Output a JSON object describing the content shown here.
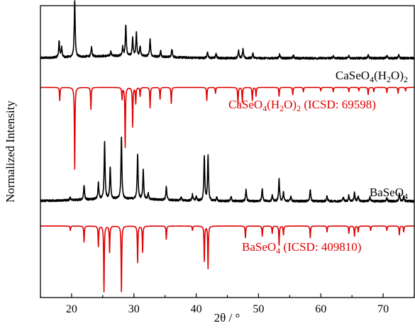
{
  "chart_data": {
    "type": "line",
    "xlabel": "2θ / °",
    "ylabel": "Normalized Intensity",
    "xlim": [
      15,
      75
    ],
    "xticks": [
      20,
      30,
      40,
      50,
      60,
      70
    ],
    "y_axis_tick_labels": false,
    "grid": false,
    "colors": {
      "measured": "#000000",
      "reference": "#e00000"
    },
    "series": [
      {
        "name": "CaSeO4(H2O)2",
        "label_parts": [
          {
            "t": "CaSeO",
            "sub": false
          },
          {
            "t": "4",
            "sub": true
          },
          {
            "t": "(H",
            "sub": false
          },
          {
            "t": "2",
            "sub": true
          },
          {
            "t": "O)",
            "sub": false
          },
          {
            "t": "2",
            "sub": true
          }
        ],
        "kind": "measured",
        "color": "#000000",
        "offset": 0.82,
        "peaks": [
          [
            18.0,
            0.055
          ],
          [
            18.4,
            0.035
          ],
          [
            20.5,
            0.195
          ],
          [
            23.2,
            0.032
          ],
          [
            26.3,
            0.016
          ],
          [
            28.2,
            0.03
          ],
          [
            28.7,
            0.105
          ],
          [
            29.8,
            0.06
          ],
          [
            30.4,
            0.078
          ],
          [
            31.0,
            0.034
          ],
          [
            32.6,
            0.06
          ],
          [
            34.3,
            0.02
          ],
          [
            36.1,
            0.028
          ],
          [
            41.8,
            0.021
          ],
          [
            43.2,
            0.015
          ],
          [
            46.8,
            0.028
          ],
          [
            47.5,
            0.03
          ],
          [
            49.1,
            0.016
          ],
          [
            53.4,
            0.015
          ],
          [
            55.6,
            0.01
          ],
          [
            62.0,
            0.008
          ],
          [
            64.5,
            0.008
          ],
          [
            67.6,
            0.01
          ],
          [
            70.6,
            0.009
          ],
          [
            72.5,
            0.01
          ]
        ]
      },
      {
        "name": "CaSeO4(H2O)2 (ICSD: 69598)",
        "label_parts": [
          {
            "t": "CaSeO",
            "sub": false
          },
          {
            "t": "4",
            "sub": true
          },
          {
            "t": "(H",
            "sub": false
          },
          {
            "t": "2",
            "sub": true
          },
          {
            "t": "O)",
            "sub": false
          },
          {
            "t": "2",
            "sub": true
          },
          {
            "t": " (ICSD: 69598)",
            "sub": false
          }
        ],
        "kind": "reference",
        "color": "#e00000",
        "offset": 0.72,
        "peaks": [
          [
            18.1,
            0.045
          ],
          [
            20.5,
            0.28
          ],
          [
            23.1,
            0.075
          ],
          [
            28.1,
            0.04
          ],
          [
            28.6,
            0.205
          ],
          [
            29.8,
            0.135
          ],
          [
            30.3,
            0.055
          ],
          [
            31.0,
            0.03
          ],
          [
            32.6,
            0.07
          ],
          [
            34.2,
            0.04
          ],
          [
            36.0,
            0.055
          ],
          [
            41.7,
            0.045
          ],
          [
            43.1,
            0.02
          ],
          [
            46.7,
            0.06
          ],
          [
            47.4,
            0.05
          ],
          [
            49.0,
            0.045
          ],
          [
            49.6,
            0.03
          ],
          [
            53.3,
            0.03
          ],
          [
            55.5,
            0.025
          ],
          [
            57.2,
            0.015
          ],
          [
            60.0,
            0.012
          ],
          [
            62.0,
            0.015
          ],
          [
            64.5,
            0.015
          ],
          [
            66.1,
            0.012
          ],
          [
            67.6,
            0.025
          ],
          [
            68.5,
            0.015
          ],
          [
            70.6,
            0.018
          ],
          [
            72.4,
            0.02
          ],
          [
            73.6,
            0.012
          ]
        ]
      },
      {
        "name": "BaSeO4",
        "label_parts": [
          {
            "t": "BaSeO",
            "sub": false
          },
          {
            "t": "4",
            "sub": true
          }
        ],
        "kind": "measured",
        "color": "#000000",
        "offset": 0.33,
        "peaks": [
          [
            19.8,
            0.01
          ],
          [
            22.0,
            0.05
          ],
          [
            24.3,
            0.055
          ],
          [
            25.3,
            0.195
          ],
          [
            26.2,
            0.11
          ],
          [
            28.0,
            0.21
          ],
          [
            30.6,
            0.15
          ],
          [
            31.5,
            0.1
          ],
          [
            32.3,
            0.02
          ],
          [
            35.2,
            0.045
          ],
          [
            37.6,
            0.012
          ],
          [
            39.4,
            0.022
          ],
          [
            40.0,
            0.015
          ],
          [
            41.3,
            0.15
          ],
          [
            41.9,
            0.155
          ],
          [
            43.3,
            0.012
          ],
          [
            45.6,
            0.015
          ],
          [
            48.0,
            0.04
          ],
          [
            50.6,
            0.045
          ],
          [
            52.2,
            0.02
          ],
          [
            53.3,
            0.075
          ],
          [
            54.0,
            0.03
          ],
          [
            55.2,
            0.018
          ],
          [
            58.3,
            0.04
          ],
          [
            61.0,
            0.018
          ],
          [
            63.6,
            0.015
          ],
          [
            64.5,
            0.02
          ],
          [
            65.4,
            0.03
          ],
          [
            66.0,
            0.018
          ],
          [
            67.9,
            0.014
          ],
          [
            70.6,
            0.012
          ],
          [
            72.6,
            0.025
          ],
          [
            73.3,
            0.015
          ]
        ]
      },
      {
        "name": "BaSeO4 (ICSD: 409810)",
        "label_parts": [
          {
            "t": "BaSeO",
            "sub": false
          },
          {
            "t": "4",
            "sub": true
          },
          {
            "t": " (ICSD: 409810)",
            "sub": false
          }
        ],
        "kind": "reference",
        "color": "#e00000",
        "offset": 0.245,
        "peaks": [
          [
            19.8,
            0.015
          ],
          [
            22.0,
            0.055
          ],
          [
            24.3,
            0.07
          ],
          [
            25.2,
            0.225
          ],
          [
            26.1,
            0.09
          ],
          [
            28.0,
            0.225
          ],
          [
            30.6,
            0.125
          ],
          [
            31.4,
            0.09
          ],
          [
            35.2,
            0.045
          ],
          [
            39.4,
            0.015
          ],
          [
            41.3,
            0.12
          ],
          [
            41.9,
            0.145
          ],
          [
            47.9,
            0.04
          ],
          [
            50.6,
            0.035
          ],
          [
            52.2,
            0.025
          ],
          [
            53.3,
            0.065
          ],
          [
            54.0,
            0.03
          ],
          [
            58.3,
            0.04
          ],
          [
            61.0,
            0.02
          ],
          [
            64.5,
            0.025
          ],
          [
            65.4,
            0.035
          ],
          [
            66.0,
            0.02
          ],
          [
            68.0,
            0.015
          ],
          [
            70.6,
            0.015
          ],
          [
            72.6,
            0.03
          ],
          [
            73.3,
            0.02
          ]
        ]
      }
    ]
  }
}
